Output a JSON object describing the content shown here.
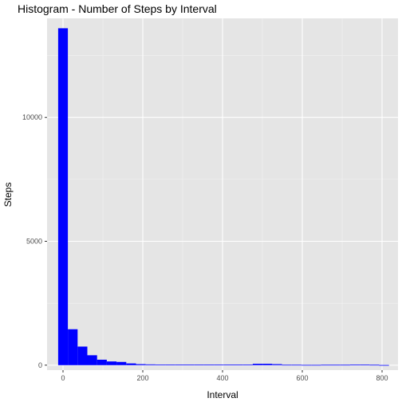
{
  "chart_data": {
    "type": "bar",
    "title": "Histogram - Number of Steps by Interval",
    "xlabel": "Interval",
    "ylabel": "Steps",
    "bin_width": 24.4,
    "bins": [
      {
        "x0": -12.2,
        "x1": 12.2,
        "count": 13600
      },
      {
        "x0": 12.2,
        "x1": 36.6,
        "count": 1450
      },
      {
        "x0": 36.6,
        "x1": 61.0,
        "count": 750
      },
      {
        "x0": 61.0,
        "x1": 85.4,
        "count": 400
      },
      {
        "x0": 85.4,
        "x1": 109.8,
        "count": 220
      },
      {
        "x0": 109.8,
        "x1": 134.2,
        "count": 150
      },
      {
        "x0": 134.2,
        "x1": 158.6,
        "count": 130
      },
      {
        "x0": 158.6,
        "x1": 183.0,
        "count": 70
      },
      {
        "x0": 183.0,
        "x1": 207.4,
        "count": 40
      },
      {
        "x0": 207.4,
        "x1": 231.8,
        "count": 30
      },
      {
        "x0": 231.8,
        "x1": 256.2,
        "count": 25
      },
      {
        "x0": 256.2,
        "x1": 280.6,
        "count": 20
      },
      {
        "x0": 280.6,
        "x1": 305.0,
        "count": 20
      },
      {
        "x0": 305.0,
        "x1": 329.4,
        "count": 20
      },
      {
        "x0": 329.4,
        "x1": 353.8,
        "count": 20
      },
      {
        "x0": 353.8,
        "x1": 378.2,
        "count": 20
      },
      {
        "x0": 378.2,
        "x1": 402.6,
        "count": 20
      },
      {
        "x0": 402.6,
        "x1": 427.0,
        "count": 20
      },
      {
        "x0": 427.0,
        "x1": 451.4,
        "count": 20
      },
      {
        "x0": 451.4,
        "x1": 475.8,
        "count": 25
      },
      {
        "x0": 475.8,
        "x1": 500.2,
        "count": 55
      },
      {
        "x0": 500.2,
        "x1": 524.6,
        "count": 55
      },
      {
        "x0": 524.6,
        "x1": 549.0,
        "count": 40
      },
      {
        "x0": 549.0,
        "x1": 573.4,
        "count": 15
      },
      {
        "x0": 573.4,
        "x1": 597.8,
        "count": 15
      },
      {
        "x0": 597.8,
        "x1": 622.2,
        "count": 10
      },
      {
        "x0": 622.2,
        "x1": 646.6,
        "count": 10
      },
      {
        "x0": 646.6,
        "x1": 671.0,
        "count": 15
      },
      {
        "x0": 671.0,
        "x1": 695.4,
        "count": 15
      },
      {
        "x0": 695.4,
        "x1": 719.8,
        "count": 15
      },
      {
        "x0": 719.8,
        "x1": 744.2,
        "count": 25
      },
      {
        "x0": 744.2,
        "x1": 768.6,
        "count": 20
      },
      {
        "x0": 768.6,
        "x1": 793.0,
        "count": 15
      },
      {
        "x0": 793.0,
        "x1": 817.4,
        "count": 5
      }
    ],
    "xlim": [
      -40,
      840
    ],
    "ylim": [
      -200,
      14000
    ],
    "xticks": [
      0,
      200,
      400,
      600,
      800
    ],
    "xtick_labels": [
      "0",
      "200",
      "400",
      "600",
      "800"
    ],
    "yticks": [
      0,
      5000,
      10000
    ],
    "ytick_labels": [
      "0",
      "5000",
      "10000"
    ],
    "grid": true,
    "colors": {
      "bar_fill": "#0000ff",
      "panel_bg": "#e5e5e5",
      "grid_major": "#ffffff",
      "grid_minor": "#f2f2f2",
      "text": "#000000",
      "tick_text": "#4d4d4d",
      "tick_mark": "#333333"
    }
  }
}
